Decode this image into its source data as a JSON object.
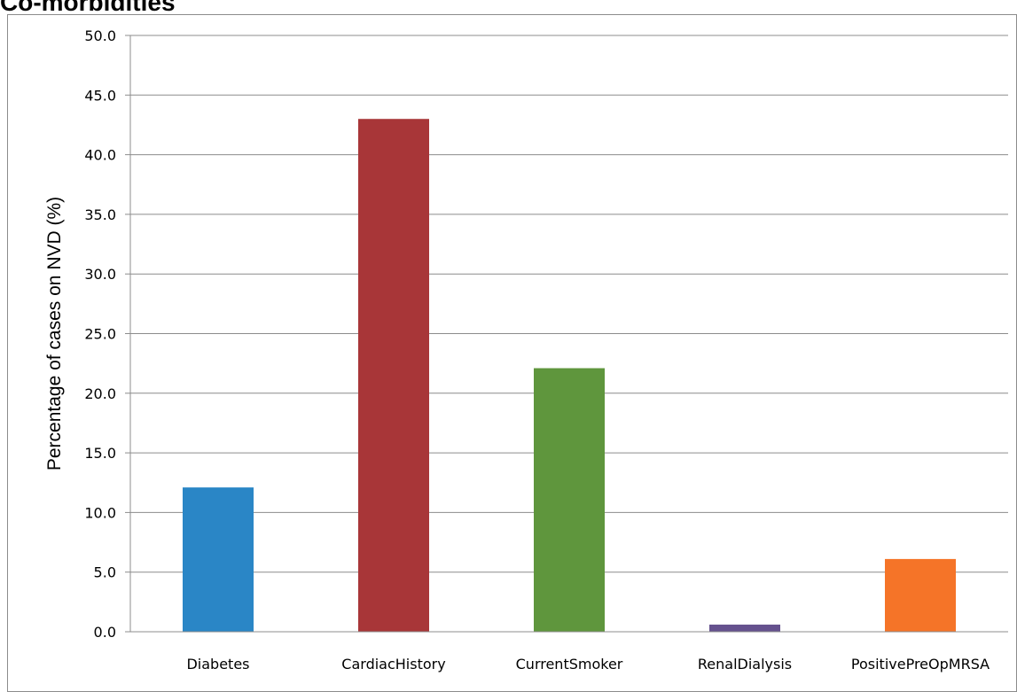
{
  "chart_data": {
    "type": "bar",
    "title": "Co-morbidities",
    "xlabel": "",
    "ylabel": "Percentage of cases on NVD (%)",
    "categories": [
      "Diabetes",
      "CardiacHistory",
      "CurrentSmoker",
      "RenalDialysis",
      "PositivePreOpMRSA"
    ],
    "values": [
      12.1,
      43.0,
      22.1,
      0.6,
      6.1
    ],
    "colors": [
      "#2a86c6",
      "#a83638",
      "#5f963d",
      "#65518e",
      "#f57428"
    ],
    "ylim": [
      0,
      50
    ],
    "yticks": [
      "0.0",
      "5.0",
      "10.0",
      "15.0",
      "20.0",
      "25.0",
      "30.0",
      "35.0",
      "40.0",
      "45.0",
      "50.0"
    ],
    "grid": true,
    "legend": "none"
  }
}
